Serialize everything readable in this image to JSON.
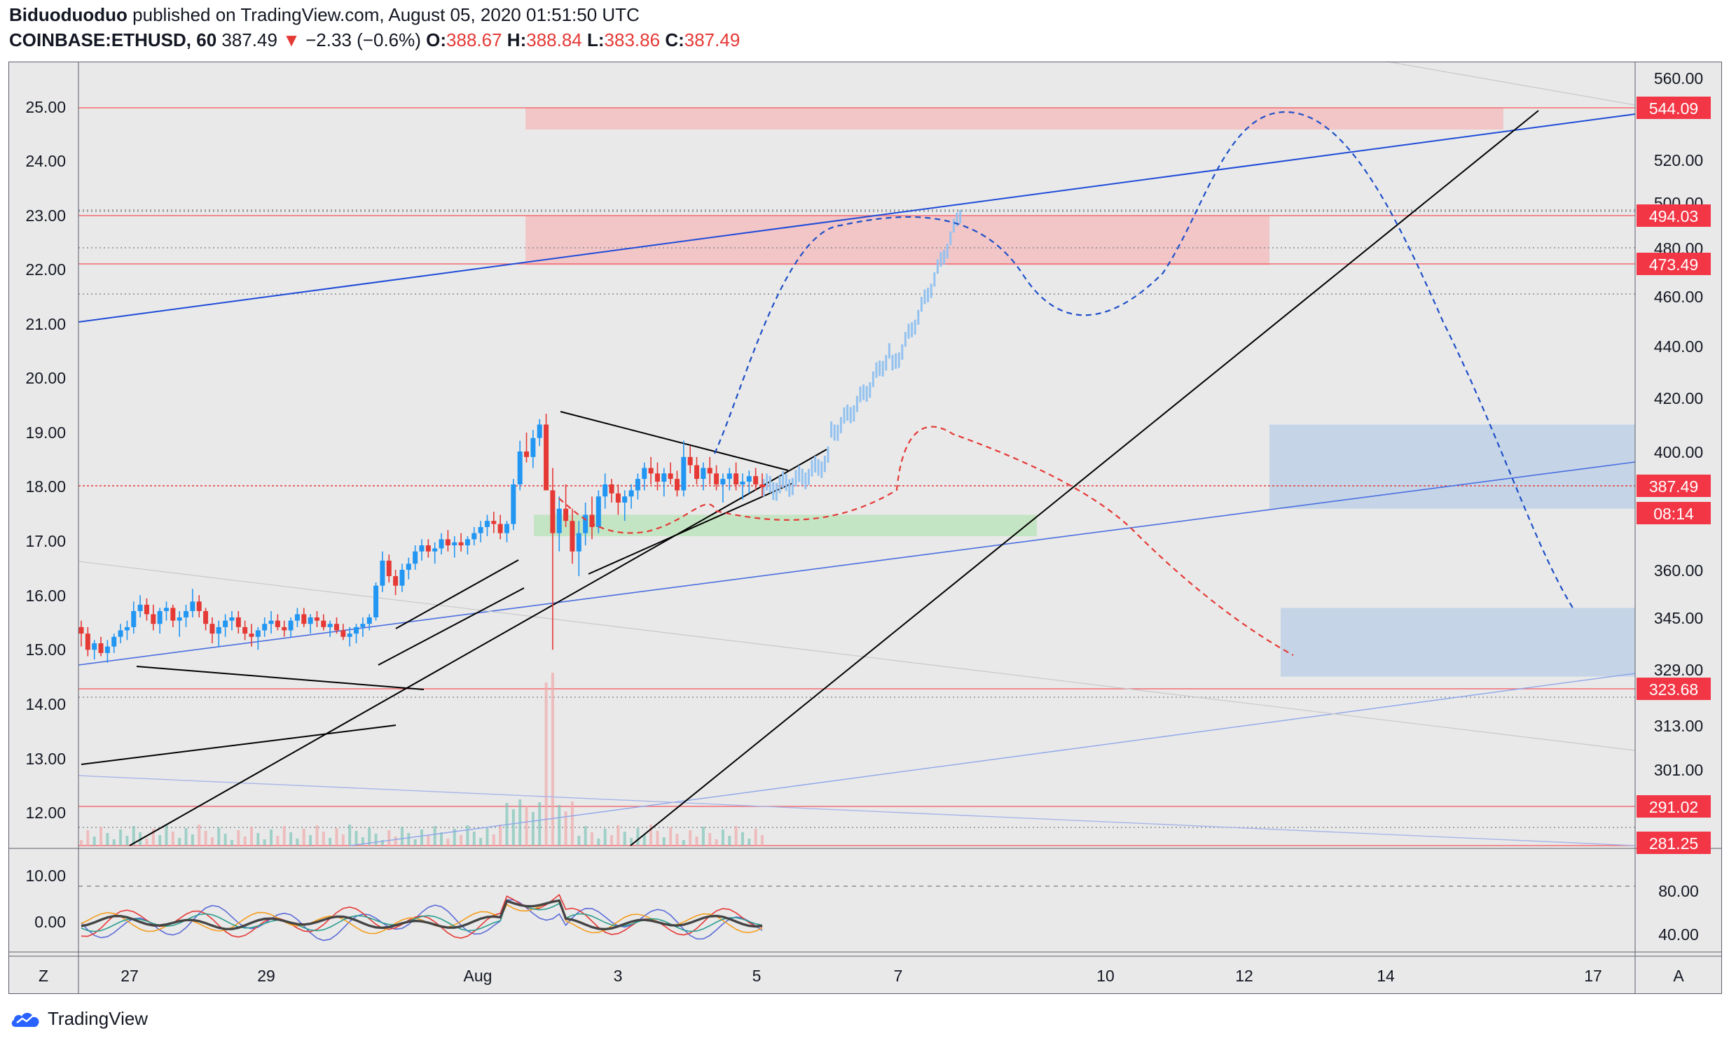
{
  "header": {
    "author": "Biduoduoduo",
    "published_text": "published on TradingView.com, August 05, 2020 01:51:50 UTC",
    "symbol": "COINBASE:ETHUSD, 60",
    "price": "387.49",
    "change_arrow": "▼",
    "change": "−2.33 (−0.6%)",
    "open_label": "O:",
    "open": "388.67",
    "high_label": "H:",
    "high": "388.84",
    "low_label": "L:",
    "low": "383.86",
    "close_label": "C:",
    "close": "387.49"
  },
  "footer": {
    "brand": "TradingView"
  },
  "chart_data": {
    "type": "candlestick",
    "symbol": "COINBASE:ETHUSD",
    "interval": "60",
    "right_axis": {
      "ticks": [
        "560.00",
        "520.00",
        "500.00",
        "480.00",
        "460.00",
        "440.00",
        "420.00",
        "400.00",
        "360.00",
        "345.00",
        "329.00",
        "313.00",
        "301.00"
      ],
      "price_labels": [
        {
          "value": "544.09",
          "color": "#f23645"
        },
        {
          "value": "494.03",
          "color": "#f23645"
        },
        {
          "value": "473.49",
          "color": "#f23645"
        },
        {
          "value": "387.49",
          "color": "#f23645"
        },
        {
          "value": "08:14",
          "color": "#f23645"
        },
        {
          "value": "323.68",
          "color": "#f23645"
        },
        {
          "value": "291.02",
          "color": "#f23645"
        },
        {
          "value": "281.25",
          "color": "#f23645"
        }
      ]
    },
    "left_axis": {
      "ticks": [
        "25.00",
        "24.00",
        "23.00",
        "22.00",
        "21.00",
        "20.00",
        "19.00",
        "18.00",
        "17.00",
        "16.00",
        "15.00",
        "14.00",
        "13.00",
        "12.00"
      ]
    },
    "indicator_axis": {
      "left_ticks": [
        "10.00",
        "0.00"
      ],
      "right_ticks": [
        "80.00",
        "40.00"
      ]
    },
    "x_axis": {
      "ticks": [
        "27",
        "29",
        "Aug",
        "3",
        "5",
        "7",
        "10",
        "12",
        "14",
        "17"
      ],
      "left_button": "Z",
      "right_button": "A"
    },
    "candles_ohlc": [
      [
        342,
        344,
        336,
        340
      ],
      [
        340,
        342,
        333,
        335
      ],
      [
        335,
        338,
        332,
        337
      ],
      [
        337,
        339,
        333,
        334
      ],
      [
        334,
        338,
        331,
        336
      ],
      [
        336,
        340,
        334,
        339
      ],
      [
        339,
        343,
        337,
        341
      ],
      [
        341,
        344,
        338,
        342
      ],
      [
        342,
        350,
        340,
        347
      ],
      [
        347,
        352,
        345,
        349
      ],
      [
        349,
        351,
        344,
        346
      ],
      [
        346,
        349,
        341,
        343
      ],
      [
        343,
        348,
        340,
        347
      ],
      [
        347,
        350,
        344,
        348
      ],
      [
        348,
        349,
        342,
        344
      ],
      [
        344,
        347,
        339,
        345
      ],
      [
        345,
        349,
        342,
        347
      ],
      [
        347,
        354,
        345,
        350
      ],
      [
        350,
        352,
        345,
        347
      ],
      [
        347,
        348,
        341,
        343
      ],
      [
        343,
        345,
        337,
        340
      ],
      [
        340,
        344,
        336,
        342
      ],
      [
        342,
        346,
        339,
        344
      ],
      [
        344,
        347,
        341,
        345
      ],
      [
        345,
        347,
        340,
        342
      ],
      [
        342,
        344,
        338,
        340
      ],
      [
        340,
        343,
        336,
        339
      ],
      [
        339,
        342,
        335,
        341
      ],
      [
        341,
        345,
        339,
        343
      ],
      [
        343,
        347,
        340,
        344
      ],
      [
        344,
        346,
        341,
        342
      ],
      [
        342,
        344,
        339,
        341
      ],
      [
        341,
        345,
        339,
        344
      ],
      [
        344,
        348,
        342,
        346
      ],
      [
        346,
        348,
        342,
        343
      ],
      [
        343,
        346,
        340,
        345
      ],
      [
        345,
        347,
        342,
        344
      ],
      [
        344,
        346,
        341,
        342
      ],
      [
        342,
        344,
        339,
        343
      ],
      [
        343,
        345,
        340,
        341
      ],
      [
        341,
        343,
        338,
        339
      ],
      [
        339,
        342,
        336,
        340
      ],
      [
        340,
        343,
        337,
        342
      ],
      [
        342,
        345,
        339,
        343
      ],
      [
        343,
        346,
        341,
        345
      ],
      [
        345,
        356,
        344,
        355
      ],
      [
        355,
        366,
        353,
        363
      ],
      [
        363,
        365,
        356,
        358
      ],
      [
        358,
        360,
        352,
        355
      ],
      [
        355,
        362,
        353,
        360
      ],
      [
        360,
        364,
        357,
        362
      ],
      [
        362,
        368,
        360,
        366
      ],
      [
        366,
        370,
        363,
        368
      ],
      [
        368,
        370,
        364,
        366
      ],
      [
        366,
        369,
        362,
        367
      ],
      [
        367,
        372,
        365,
        370
      ],
      [
        370,
        373,
        366,
        368
      ],
      [
        368,
        371,
        364,
        369
      ],
      [
        369,
        372,
        366,
        368
      ],
      [
        368,
        371,
        365,
        370
      ],
      [
        370,
        374,
        368,
        372
      ],
      [
        372,
        376,
        369,
        374
      ],
      [
        374,
        378,
        371,
        376
      ],
      [
        376,
        379,
        372,
        375
      ],
      [
        375,
        378,
        370,
        372
      ],
      [
        372,
        376,
        369,
        375
      ],
      [
        375,
        390,
        373,
        388
      ],
      [
        388,
        404,
        386,
        400
      ],
      [
        400,
        407,
        396,
        398
      ],
      [
        398,
        408,
        394,
        405
      ],
      [
        405,
        412,
        402,
        410
      ],
      [
        410,
        414,
        404,
        386
      ],
      [
        386,
        394,
        335,
        372
      ],
      [
        372,
        384,
        366,
        380
      ],
      [
        380,
        388,
        374,
        376
      ],
      [
        376,
        380,
        362,
        366
      ],
      [
        366,
        376,
        358,
        372
      ],
      [
        372,
        382,
        368,
        378
      ],
      [
        378,
        384,
        370,
        374
      ],
      [
        374,
        386,
        372,
        384
      ],
      [
        384,
        392,
        380,
        388
      ],
      [
        388,
        390,
        382,
        385
      ],
      [
        385,
        388,
        378,
        382
      ],
      [
        382,
        386,
        376,
        384
      ],
      [
        384,
        388,
        380,
        386
      ],
      [
        386,
        392,
        383,
        390
      ],
      [
        390,
        396,
        386,
        394
      ],
      [
        394,
        398,
        388,
        392
      ],
      [
        392,
        396,
        386,
        389
      ],
      [
        389,
        394,
        384,
        392
      ],
      [
        392,
        396,
        388,
        390
      ],
      [
        390,
        393,
        384,
        386
      ],
      [
        386,
        404,
        384,
        398
      ],
      [
        398,
        402,
        392,
        395
      ],
      [
        395,
        398,
        388,
        390
      ],
      [
        390,
        396,
        386,
        394
      ],
      [
        394,
        398,
        388,
        392
      ],
      [
        392,
        395,
        386,
        388
      ],
      [
        388,
        392,
        382,
        390
      ],
      [
        390,
        394,
        386,
        392
      ],
      [
        392,
        396,
        386,
        388
      ],
      [
        388,
        392,
        383,
        389
      ],
      [
        389,
        393,
        385,
        391
      ],
      [
        391,
        394,
        386,
        388
      ],
      [
        388,
        392,
        384,
        387
      ]
    ],
    "zones": [
      {
        "kind": "resistance",
        "color": "#f4b8bb",
        "from": "Aug 1",
        "to": "Aug 15",
        "low": 534,
        "high": 544
      },
      {
        "kind": "resistance",
        "color": "#f4b8bb",
        "from": "Aug 1",
        "to": "Aug 12",
        "low": 473,
        "high": 494
      },
      {
        "kind": "support",
        "color": "#b7e3b5",
        "from": "Aug 1",
        "to": "Aug 8",
        "low": 371,
        "high": 378
      },
      {
        "kind": "support",
        "color": "#b8cde6",
        "from": "Aug 12",
        "to": "Aug 17",
        "low": 380,
        "high": 410
      },
      {
        "kind": "support",
        "color": "#b8cde6",
        "from": "Aug 12",
        "to": "Aug 17",
        "low": 327,
        "high": 348
      }
    ],
    "horizontal_levels": [
      544.09,
      494.03,
      473.49,
      387.49,
      323.68,
      291.02,
      281.25
    ],
    "projection": "blue dashed path to 544 then decline toward 345; red dashed path to 410 then decline toward 330",
    "legend": "none",
    "grid": "none"
  },
  "colors": {
    "background": "#e9e9e9",
    "up_candle": "#2196f3",
    "down_candle": "#e53935",
    "projection_blue": "#1e50c8",
    "projection_red": "#e53935",
    "level_line": "#f26c72",
    "label_bg": "#f23645"
  }
}
